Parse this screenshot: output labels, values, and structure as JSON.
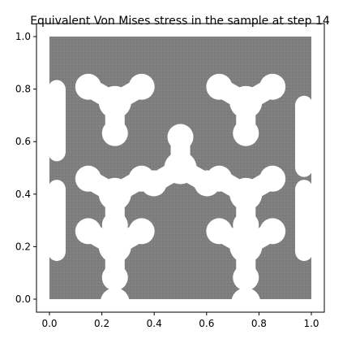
{
  "chart_data": {
    "type": "heatmap",
    "title": "Equivalent Von Mises stress in the sample at step 14",
    "xlabel": "",
    "ylabel": "",
    "xlim": [
      0.0,
      1.0
    ],
    "ylim": [
      0.0,
      1.0
    ],
    "x_ticks": [
      "0.0",
      "0.2",
      "0.4",
      "0.6",
      "0.8",
      "1.0"
    ],
    "y_ticks": [
      "0.0",
      "0.2",
      "0.4",
      "0.6",
      "0.8",
      "1.0"
    ],
    "grid": false,
    "fill_color": "#808080",
    "hole_color": "#ffffff",
    "holes": [
      {
        "name": "hole-top-left",
        "center": [
          0.25,
          0.75
        ]
      },
      {
        "name": "hole-top-right",
        "center": [
          0.75,
          0.75
        ]
      },
      {
        "name": "hole-middle-left",
        "center": [
          0.25,
          0.4
        ]
      },
      {
        "name": "hole-middle-center",
        "center": [
          0.5,
          0.5
        ]
      },
      {
        "name": "hole-middle-right",
        "center": [
          0.75,
          0.4
        ]
      },
      {
        "name": "hole-bottom-left",
        "center": [
          0.25,
          0.2
        ]
      },
      {
        "name": "hole-bottom-right",
        "center": [
          0.75,
          0.2
        ]
      }
    ]
  }
}
